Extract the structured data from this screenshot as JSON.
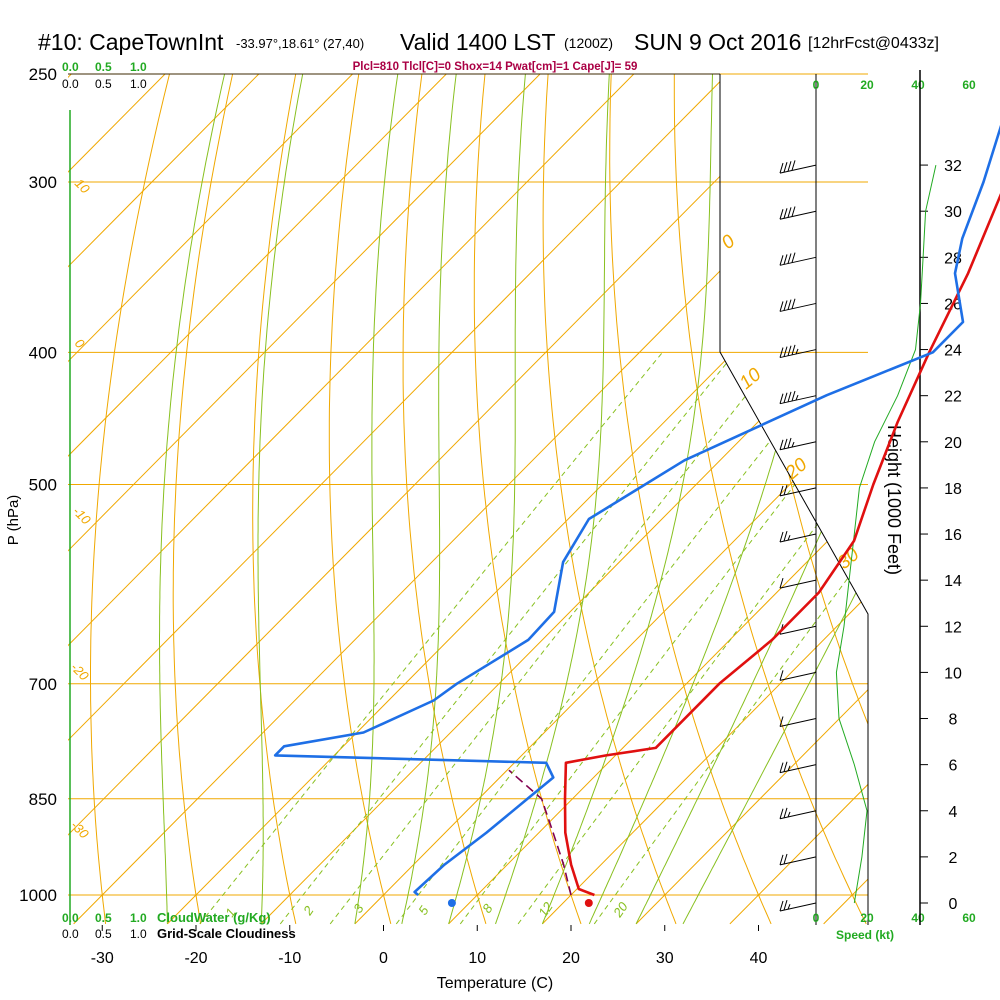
{
  "header": {
    "station": "#10: CapeTownInt",
    "coords": "-33.97°,18.61° (27,40)",
    "valid": "Valid 1400 LST",
    "zulu": "(1200Z)",
    "date": "SUN 9 Oct 2016",
    "forecast": "[12hrFcst@0433z]",
    "indices": "Plcl=810 Tlcl[C]=0 Shox=14 Pwat[cm]=1 Cape[J]= 59"
  },
  "labels": {
    "cloudwater": "CloudWater (g/Kg)",
    "cloudiness": "Grid-Scale Cloudiness",
    "speed": "Speed (kt)"
  },
  "colors": {
    "isotherm": "#f0a800",
    "dry_adiabat": "#f0a800",
    "moist_adiabat": "#88c020",
    "mixing_ratio": "#88c020",
    "temperature": "#e01010",
    "dewpoint": "#1e6fe6",
    "parcel": "#800050",
    "green_text": "#22aa22",
    "cloud_water_line": "#22aa22"
  },
  "chart_data": {
    "type": "line",
    "title": "#10: CapeTownInt  Valid 1400 LST (1200Z) SUN 9 Oct 2016 [12hrFcst@0433z]",
    "xlabel": "Temperature (C)",
    "ylabel": "P (hPa)",
    "y2label": "Height (1000 Feet)",
    "xlim": [
      -35,
      45
    ],
    "x_ticks": [
      -30,
      -20,
      -10,
      0,
      10,
      20,
      30,
      40
    ],
    "p_ticks": [
      250,
      300,
      400,
      500,
      700,
      850,
      1000
    ],
    "p_range": [
      250,
      1050
    ],
    "height_ticks_kft": [
      0,
      2,
      4,
      6,
      8,
      10,
      12,
      14,
      16,
      18,
      20,
      22,
      24,
      26,
      28,
      30,
      32
    ],
    "cloud_scale_ticks": [
      "0.0",
      "0.5",
      "1.0"
    ],
    "speed_ticks": [
      "0",
      "20",
      "40",
      "60"
    ],
    "dry_adiabat_labels": [
      "10",
      "0",
      "-10",
      "-20",
      "-30"
    ],
    "theta_e_labels": [
      "0",
      "10",
      "20",
      "30"
    ],
    "mixing_ratio_labels": [
      "1",
      "2",
      "3",
      "5",
      "8",
      "12",
      "20"
    ],
    "series": [
      {
        "name": "temperature",
        "points": [
          [
            1000,
            22.5
          ],
          [
            990,
            20.2
          ],
          [
            950,
            16.8
          ],
          [
            900,
            12.8
          ],
          [
            850,
            9.2
          ],
          [
            800,
            5.5
          ],
          [
            790,
            9.0
          ],
          [
            780,
            13.5
          ],
          [
            700,
            13.5
          ],
          [
            650,
            14.5
          ],
          [
            600,
            14.5
          ],
          [
            550,
            12.8
          ],
          [
            500,
            8.9
          ],
          [
            450,
            4.9
          ],
          [
            400,
            0.9
          ],
          [
            350,
            -3.3
          ],
          [
            300,
            -8.9
          ],
          [
            270,
            -11.4
          ]
        ]
      },
      {
        "name": "dewpoint",
        "points": [
          [
            1000,
            3.7
          ],
          [
            995,
            3.0
          ],
          [
            950,
            3.3
          ],
          [
            900,
            4.4
          ],
          [
            850,
            5.2
          ],
          [
            820,
            5.7
          ],
          [
            800,
            3.4
          ],
          [
            790,
            -26.3
          ],
          [
            778,
            -26.3
          ],
          [
            760,
            -19.3
          ],
          [
            720,
            -15.2
          ],
          [
            700,
            -14.5
          ],
          [
            650,
            -11.5
          ],
          [
            620,
            -11.7
          ],
          [
            570,
            -16.0
          ],
          [
            530,
            -17.8
          ],
          [
            480,
            -13.8
          ],
          [
            430,
            -5.5
          ],
          [
            400,
            1.3
          ],
          [
            380,
            1.3
          ],
          [
            350,
            -4.7
          ],
          [
            330,
            -7.6
          ],
          [
            300,
            -11.3
          ],
          [
            270,
            -15.8
          ]
        ]
      },
      {
        "name": "parcel",
        "points": [
          [
            1000,
            20.0
          ],
          [
            950,
            16.0
          ],
          [
            900,
            11.5
          ],
          [
            850,
            6.7
          ],
          [
            810,
            0.2
          ]
        ]
      }
    ],
    "surface_points": [
      {
        "name": "surface_temperature",
        "p": 1000,
        "t": 21.9
      },
      {
        "name": "surface_dewpoint",
        "p": 1000,
        "t": 7.3
      }
    ],
    "wind_barbs_kft": [
      {
        "height": 32,
        "speed_kt": 40
      },
      {
        "height": 30,
        "speed_kt": 40
      },
      {
        "height": 28,
        "speed_kt": 40
      },
      {
        "height": 26,
        "speed_kt": 40
      },
      {
        "height": 24,
        "speed_kt": 35
      },
      {
        "height": 22,
        "speed_kt": 35
      },
      {
        "height": 20,
        "speed_kt": 25
      },
      {
        "height": 18,
        "speed_kt": 20
      },
      {
        "height": 16,
        "speed_kt": 15
      },
      {
        "height": 14,
        "speed_kt": 10
      },
      {
        "height": 12,
        "speed_kt": 10
      },
      {
        "height": 10,
        "speed_kt": 10
      },
      {
        "height": 8,
        "speed_kt": 10
      },
      {
        "height": 6,
        "speed_kt": 15
      },
      {
        "height": 4,
        "speed_kt": 15
      },
      {
        "height": 2,
        "speed_kt": 20
      },
      {
        "height": 0,
        "speed_kt": 15
      }
    ]
  }
}
